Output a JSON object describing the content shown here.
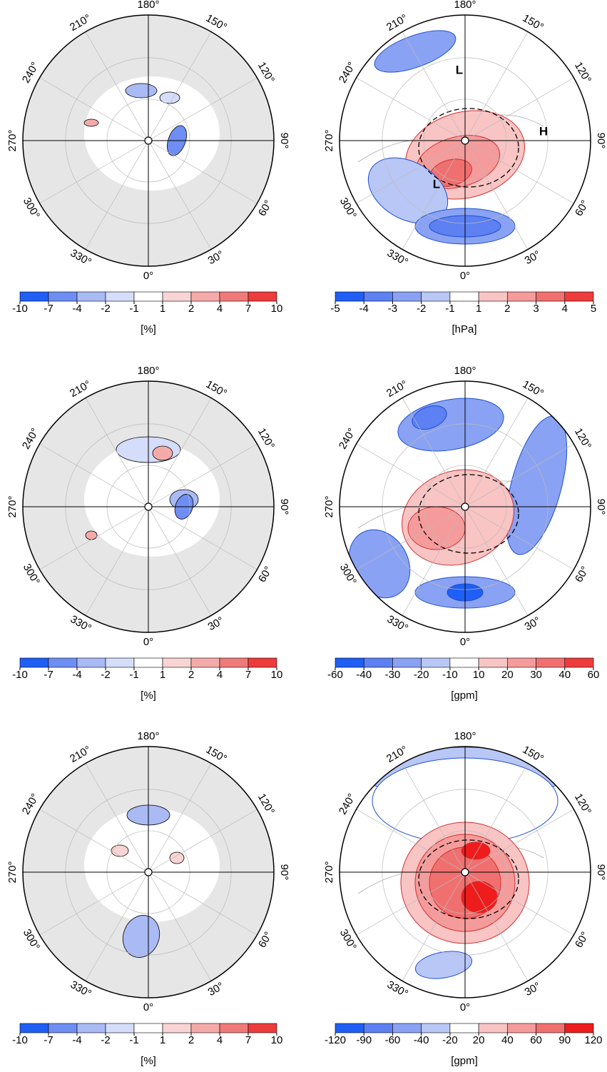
{
  "panels": [
    {
      "lon_labels": [
        "180°",
        "150°",
        "120°",
        "90°",
        "60°",
        "30°",
        "0°",
        "330°",
        "300°",
        "270°",
        "240°",
        "210°"
      ],
      "colorbar": {
        "ticks": [
          -10,
          -7,
          -4,
          -2,
          -1,
          1,
          2,
          4,
          7,
          10
        ],
        "colors": [
          "#1f5ff5",
          "#6f8ef3",
          "#a9baf5",
          "#d4ddf9",
          "#ffffff",
          "#f9d4d4",
          "#f5aaaa",
          "#f07a7a",
          "#ee3c3c"
        ],
        "unit": "[%]"
      }
    },
    {
      "lon_labels": [
        "180°",
        "150°",
        "120°",
        "90°",
        "60°",
        "30°",
        "0°",
        "330°",
        "300°",
        "270°",
        "240°",
        "210°"
      ],
      "colorbar": {
        "ticks": [
          -5,
          -4,
          -3,
          -2,
          -1,
          1,
          2,
          3,
          4,
          5
        ],
        "colors": [
          "#1f5ff5",
          "#5d80f2",
          "#8aa2f3",
          "#b9c7f6",
          "#ffffff",
          "#f9c4c4",
          "#f59b9b",
          "#f07070",
          "#ee3c3c"
        ],
        "unit": "[hPa]"
      },
      "labels": [
        "L",
        "H",
        "L"
      ]
    },
    {
      "lon_labels": [
        "180°",
        "150°",
        "120°",
        "90°",
        "60°",
        "30°",
        "0°",
        "330°",
        "300°",
        "270°",
        "240°",
        "210°"
      ],
      "colorbar": {
        "ticks": [
          -10,
          -7,
          -4,
          -2,
          -1,
          1,
          2,
          4,
          7,
          10
        ],
        "colors": [
          "#1f5ff5",
          "#6f8ef3",
          "#a9baf5",
          "#d4ddf9",
          "#ffffff",
          "#f9d4d4",
          "#f5aaaa",
          "#f07a7a",
          "#ee3c3c"
        ],
        "unit": "[%]"
      }
    },
    {
      "lon_labels": [
        "180°",
        "150°",
        "120°",
        "90°",
        "60°",
        "30°",
        "0°",
        "330°",
        "300°",
        "270°",
        "240°",
        "210°"
      ],
      "colorbar": {
        "ticks": [
          -60,
          -40,
          -30,
          -20,
          -10,
          10,
          20,
          30,
          40,
          60
        ],
        "colors": [
          "#1f5ff5",
          "#5d80f2",
          "#8aa2f3",
          "#b9c7f6",
          "#ffffff",
          "#f9c4c4",
          "#f59b9b",
          "#f07070",
          "#ee3c3c"
        ],
        "unit": "[gpm]"
      }
    },
    {
      "lon_labels": [
        "180°",
        "150°",
        "120°",
        "90°",
        "60°",
        "30°",
        "0°",
        "330°",
        "300°",
        "270°",
        "240°",
        "210°"
      ],
      "colorbar": {
        "ticks": [
          -10,
          -7,
          -4,
          -2,
          -1,
          1,
          2,
          4,
          7,
          10
        ],
        "colors": [
          "#1f5ff5",
          "#6f8ef3",
          "#a9baf5",
          "#d4ddf9",
          "#ffffff",
          "#f9d4d4",
          "#f5aaaa",
          "#f07a7a",
          "#ee3c3c"
        ],
        "unit": "[%]"
      }
    },
    {
      "lon_labels": [
        "180°",
        "150°",
        "120°",
        "90°",
        "60°",
        "30°",
        "0°",
        "330°",
        "300°",
        "270°",
        "240°",
        "210°"
      ],
      "colorbar": {
        "ticks": [
          -120,
          -90,
          -60,
          -40,
          -20,
          20,
          40,
          60,
          90,
          120
        ],
        "colors": [
          "#1f5ff5",
          "#5d80f2",
          "#8aa2f3",
          "#b9c7f6",
          "#ffffff",
          "#f9c4c4",
          "#f59b9b",
          "#f07070",
          "#ee1c1c"
        ],
        "unit": "[gpm]"
      }
    }
  ]
}
